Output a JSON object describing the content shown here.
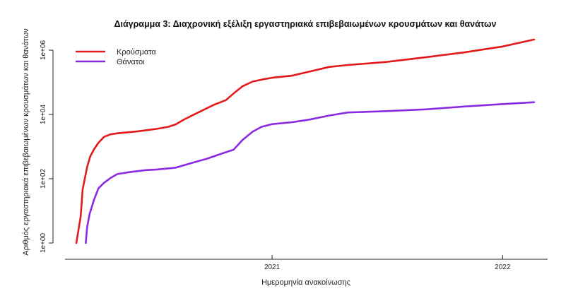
{
  "chart_data": {
    "type": "line",
    "title": "Διάγραμμα 3: Διαχρονική εξέλιξη εργαστηριακά επιβεβαιωμένων κρουσμάτων και θανάτων",
    "xlabel": "Ημερομηνία ανακοίνωσης",
    "ylabel": "Αριθμός εργαστηριακά επιβεβαιωμένων κρουσμάτων και θανάτων",
    "y_scale": "log10",
    "ylim": [
      1,
      1000000
    ],
    "y_ticks": [
      {
        "value": 1,
        "label": "1e+00"
      },
      {
        "value": 100,
        "label": "1e+02"
      },
      {
        "value": 10000,
        "label": "1e+04"
      },
      {
        "value": 1000000,
        "label": "1e+06"
      }
    ],
    "xlim": [
      "2020-02-26",
      "2022-02-20"
    ],
    "x_ticks": [
      {
        "value": "2021-01-01",
        "label": "2021"
      },
      {
        "value": "2022-01-01",
        "label": "2022"
      }
    ],
    "legend_position": "top-left",
    "series": [
      {
        "name": "Κρούσματα",
        "color": "#e31a1c",
        "points": [
          [
            "2020-02-26",
            1
          ],
          [
            "2020-03-01",
            3
          ],
          [
            "2020-03-04",
            7
          ],
          [
            "2020-03-07",
            46
          ],
          [
            "2020-03-10",
            90
          ],
          [
            "2020-03-14",
            228
          ],
          [
            "2020-03-19",
            495
          ],
          [
            "2020-03-25",
            821
          ],
          [
            "2020-04-01",
            1314
          ],
          [
            "2020-04-10",
            2011
          ],
          [
            "2020-04-20",
            2401
          ],
          [
            "2020-05-01",
            2591
          ],
          [
            "2020-06-01",
            2952
          ],
          [
            "2020-07-01",
            3519
          ],
          [
            "2020-07-20",
            4100
          ],
          [
            "2020-08-01",
            4855
          ],
          [
            "2020-08-15",
            7000
          ],
          [
            "2020-09-01",
            10317
          ],
          [
            "2020-10-01",
            20000
          ],
          [
            "2020-10-20",
            28000
          ],
          [
            "2020-11-01",
            45000
          ],
          [
            "2020-11-15",
            75000
          ],
          [
            "2020-12-01",
            105000
          ],
          [
            "2020-12-20",
            126000
          ],
          [
            "2021-01-01",
            138000
          ],
          [
            "2021-02-01",
            160000
          ],
          [
            "2021-03-01",
            215000
          ],
          [
            "2021-04-01",
            300000
          ],
          [
            "2021-05-01",
            345000
          ],
          [
            "2021-07-01",
            430000
          ],
          [
            "2021-09-01",
            600000
          ],
          [
            "2021-11-01",
            850000
          ],
          [
            "2022-01-01",
            1300000
          ],
          [
            "2022-02-20",
            2150000
          ]
        ]
      },
      {
        "name": "Θάνατοι",
        "color": "#8a2be2",
        "points": [
          [
            "2020-03-12",
            1
          ],
          [
            "2020-03-14",
            3
          ],
          [
            "2020-03-18",
            8
          ],
          [
            "2020-03-25",
            22
          ],
          [
            "2020-04-01",
            50
          ],
          [
            "2020-04-10",
            75
          ],
          [
            "2020-04-20",
            105
          ],
          [
            "2020-05-01",
            140
          ],
          [
            "2020-05-20",
            160
          ],
          [
            "2020-06-15",
            185
          ],
          [
            "2020-07-01",
            192
          ],
          [
            "2020-08-01",
            220
          ],
          [
            "2020-09-01",
            330
          ],
          [
            "2020-09-20",
            420
          ],
          [
            "2020-10-15",
            620
          ],
          [
            "2020-11-01",
            800
          ],
          [
            "2020-11-15",
            1600
          ],
          [
            "2020-12-01",
            2900
          ],
          [
            "2020-12-15",
            4100
          ],
          [
            "2021-01-01",
            5000
          ],
          [
            "2021-02-01",
            5700
          ],
          [
            "2021-03-01",
            6900
          ],
          [
            "2021-04-01",
            9200
          ],
          [
            "2021-05-01",
            11500
          ],
          [
            "2021-07-01",
            12700
          ],
          [
            "2021-09-01",
            14400
          ],
          [
            "2021-11-01",
            17600
          ],
          [
            "2022-01-01",
            21000
          ],
          [
            "2022-02-20",
            24000
          ]
        ]
      }
    ]
  }
}
